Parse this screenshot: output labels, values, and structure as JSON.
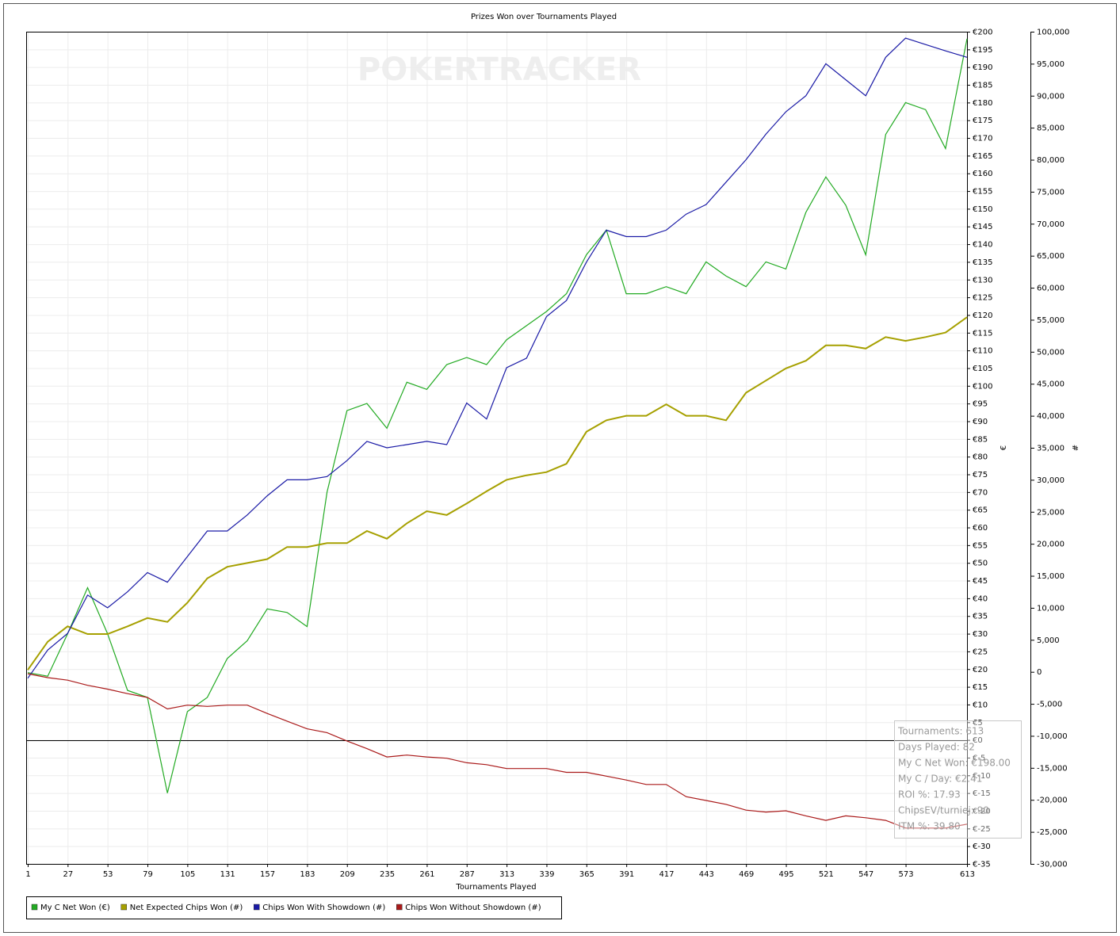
{
  "chart_data": {
    "type": "line",
    "title": "Prizes Won over Tournaments Played",
    "watermark": "POKERTRACKER",
    "x_label": "Tournaments Played",
    "y_label": "€",
    "y2_label": "#",
    "x": [
      1,
      14,
      27,
      40,
      53,
      66,
      79,
      92,
      105,
      118,
      131,
      144,
      157,
      170,
      183,
      196,
      209,
      222,
      235,
      248,
      261,
      274,
      287,
      300,
      313,
      326,
      339,
      352,
      365,
      378,
      391,
      404,
      417,
      430,
      443,
      456,
      469,
      482,
      495,
      508,
      521,
      534,
      547,
      560,
      573,
      586,
      599,
      613
    ],
    "series": [
      {
        "name": "My C Net Won (€)",
        "color": "#22aa22",
        "axis": "y",
        "values": [
          19,
          18,
          30,
          43,
          30,
          14,
          12,
          -15,
          8,
          12,
          23,
          28,
          37,
          36,
          32,
          70,
          93,
          95,
          88,
          101,
          99,
          106,
          108,
          106,
          113,
          117,
          121,
          126,
          137,
          144,
          126,
          126,
          128,
          126,
          135,
          131,
          128,
          135,
          133,
          149,
          159,
          151,
          137,
          171,
          180,
          178,
          167,
          198
        ]
      },
      {
        "name": "Net Expected Chips Won (#)",
        "color": "#a6a000",
        "axis": "y2",
        "values": [
          300,
          4700,
          7100,
          5900,
          5900,
          7100,
          8400,
          7800,
          10800,
          14600,
          16400,
          17000,
          17600,
          19500,
          19500,
          20100,
          20100,
          22000,
          20800,
          23200,
          25100,
          24500,
          26300,
          28200,
          30000,
          30700,
          31200,
          32500,
          37500,
          39300,
          40000,
          40000,
          41800,
          40000,
          40000,
          39300,
          43600,
          45500,
          47400,
          48600,
          51000,
          51000,
          50500,
          52300,
          51700,
          52300,
          53000,
          55400
        ]
      },
      {
        "name": "Chips Won With Showdown (#)",
        "color": "#1a1aa6",
        "axis": "y2",
        "values": [
          -1000,
          3400,
          6000,
          12000,
          10000,
          12500,
          15500,
          14000,
          18000,
          22000,
          22000,
          24500,
          27500,
          30000,
          30000,
          30500,
          33000,
          36000,
          35000,
          35500,
          36000,
          35500,
          42000,
          39500,
          47500,
          49000,
          55500,
          58000,
          64000,
          69000,
          68000,
          68000,
          69000,
          71500,
          73000,
          76500,
          80000,
          84000,
          87500,
          90000,
          95000,
          92500,
          90000,
          96000,
          99000,
          98000,
          97000,
          96000
        ]
      },
      {
        "name": "Chips Won Without Showdown (#)",
        "color": "#aa1a1a",
        "axis": "y2",
        "values": [
          -300,
          -900,
          -1300,
          -2100,
          -2700,
          -3400,
          -4000,
          -5800,
          -5200,
          -5400,
          -5200,
          -5200,
          -6500,
          -7700,
          -8900,
          -9500,
          -10800,
          -12000,
          -13300,
          -13000,
          -13300,
          -13500,
          -14200,
          -14500,
          -15100,
          -15100,
          -15100,
          -15700,
          -15700,
          -16300,
          -16900,
          -17600,
          -17600,
          -19500,
          -20100,
          -20700,
          -21600,
          -21900,
          -21700,
          -22500,
          -23200,
          -22500,
          -22800,
          -23200,
          -24400,
          -24400,
          -24400,
          -23800
        ]
      }
    ],
    "xlim": [
      1,
      613
    ],
    "xticks": [
      1,
      27,
      53,
      79,
      105,
      131,
      157,
      183,
      209,
      235,
      261,
      287,
      313,
      339,
      365,
      391,
      417,
      443,
      469,
      495,
      521,
      547,
      573,
      613
    ],
    "ylim": [
      -35,
      200
    ],
    "yticks": [
      {
        "value": -35,
        "label": "€-35"
      },
      {
        "value": -30,
        "label": "€-30"
      },
      {
        "value": -25,
        "label": "€-25"
      },
      {
        "value": -20,
        "label": "€-20"
      },
      {
        "value": -15,
        "label": "€-15"
      },
      {
        "value": -10,
        "label": "€-10"
      },
      {
        "value": -5,
        "label": "€-5"
      },
      {
        "value": 0,
        "label": "€0"
      },
      {
        "value": 5,
        "label": "€5"
      },
      {
        "value": 10,
        "label": "€10"
      },
      {
        "value": 15,
        "label": "€15"
      },
      {
        "value": 20,
        "label": "€20"
      },
      {
        "value": 25,
        "label": "€25"
      },
      {
        "value": 30,
        "label": "€30"
      },
      {
        "value": 35,
        "label": "€35"
      },
      {
        "value": 40,
        "label": "€40"
      },
      {
        "value": 45,
        "label": "€45"
      },
      {
        "value": 50,
        "label": "€50"
      },
      {
        "value": 55,
        "label": "€55"
      },
      {
        "value": 60,
        "label": "€60"
      },
      {
        "value": 65,
        "label": "€65"
      },
      {
        "value": 70,
        "label": "€70"
      },
      {
        "value": 75,
        "label": "€75"
      },
      {
        "value": 80,
        "label": "€80"
      },
      {
        "value": 85,
        "label": "€85"
      },
      {
        "value": 90,
        "label": "€90"
      },
      {
        "value": 95,
        "label": "€95"
      },
      {
        "value": 100,
        "label": "€100"
      },
      {
        "value": 105,
        "label": "€105"
      },
      {
        "value": 110,
        "label": "€110"
      },
      {
        "value": 115,
        "label": "€115"
      },
      {
        "value": 120,
        "label": "€120"
      },
      {
        "value": 125,
        "label": "€125"
      },
      {
        "value": 130,
        "label": "€130"
      },
      {
        "value": 135,
        "label": "€135"
      },
      {
        "value": 140,
        "label": "€140"
      },
      {
        "value": 145,
        "label": "€145"
      },
      {
        "value": 150,
        "label": "€150"
      },
      {
        "value": 155,
        "label": "€155"
      },
      {
        "value": 160,
        "label": "€160"
      },
      {
        "value": 165,
        "label": "€165"
      },
      {
        "value": 170,
        "label": "€170"
      },
      {
        "value": 175,
        "label": "€175"
      },
      {
        "value": 180,
        "label": "€180"
      },
      {
        "value": 185,
        "label": "€185"
      },
      {
        "value": 190,
        "label": "€190"
      },
      {
        "value": 195,
        "label": "€195"
      },
      {
        "value": 200,
        "label": "€200"
      }
    ],
    "y2lim": [
      -30000,
      100000
    ],
    "y2ticks": [
      {
        "value": -30000,
        "label": "-30,000"
      },
      {
        "value": -25000,
        "label": "-25,000"
      },
      {
        "value": -20000,
        "label": "-20,000"
      },
      {
        "value": -15000,
        "label": "-15,000"
      },
      {
        "value": -10000,
        "label": "-10,000"
      },
      {
        "value": -5000,
        "label": "-5,000"
      },
      0,
      {
        "value": 5000,
        "label": "5,000"
      },
      {
        "value": 10000,
        "label": "10,000"
      },
      {
        "value": 15000,
        "label": "15,000"
      },
      {
        "value": 20000,
        "label": "20,000"
      },
      {
        "value": 25000,
        "label": "25,000"
      },
      {
        "value": 30000,
        "label": "30,000"
      },
      {
        "value": 35000,
        "label": "35,000"
      },
      {
        "value": 40000,
        "label": "40,000"
      },
      {
        "value": 45000,
        "label": "45,000"
      },
      {
        "value": 50000,
        "label": "50,000"
      },
      {
        "value": 55000,
        "label": "55,000"
      },
      {
        "value": 60000,
        "label": "60,000"
      },
      {
        "value": 65000,
        "label": "65,000"
      },
      {
        "value": 70000,
        "label": "70,000"
      },
      {
        "value": 75000,
        "label": "75,000"
      },
      {
        "value": 80000,
        "label": "80,000"
      },
      {
        "value": 85000,
        "label": "85,000"
      },
      {
        "value": 90000,
        "label": "90,000"
      },
      {
        "value": 95000,
        "label": "95,000"
      },
      {
        "value": 100000,
        "label": "100,000"
      }
    ],
    "grid": true,
    "stats": [
      "Tournaments: 613",
      "Days Played: 82",
      "My C Net Won: €198.00",
      "My C / Day: €2.41",
      "ROI %: 17.93",
      "ChipsEV/turniej: 90",
      "ITM %: 39.80"
    ]
  }
}
